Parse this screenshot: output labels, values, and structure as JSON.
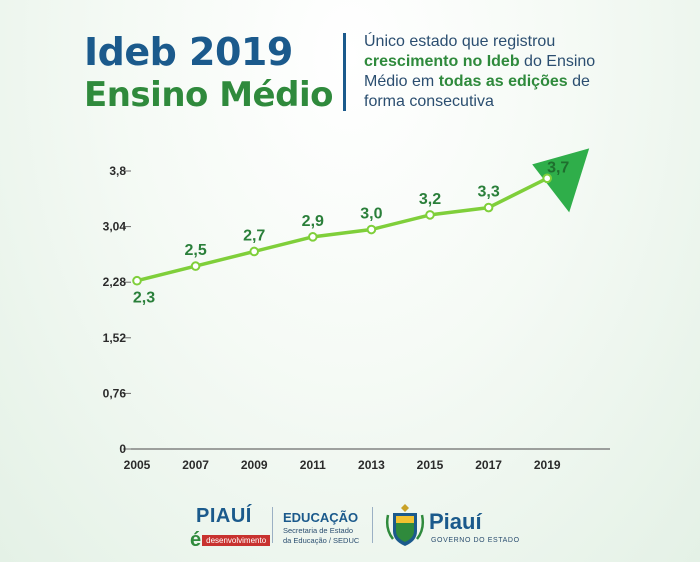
{
  "header": {
    "title_line1": "Ideb 2019",
    "title_line2": "Ensino Médio",
    "desc_part1": "Único estado que registrou ",
    "desc_bold1": "crescimento no Ideb",
    "desc_part2": " do Ensino Médio em ",
    "desc_bold2": "todas as edições",
    "desc_part3": " de forma consecutiva"
  },
  "colors": {
    "title_blue": "#1b5a8c",
    "title_green": "#2f8a3c",
    "line_green": "#7fcf3a",
    "arrow_green": "#2fae4a",
    "label_green": "#2a7f3a"
  },
  "chart_data": {
    "type": "line",
    "x": [
      "2005",
      "2007",
      "2009",
      "2011",
      "2013",
      "2015",
      "2017",
      "2019"
    ],
    "values": [
      2.3,
      2.5,
      2.7,
      2.9,
      3.0,
      3.2,
      3.3,
      3.7
    ],
    "value_labels": [
      "2,3",
      "2,5",
      "2,7",
      "2,9",
      "3,0",
      "3,2",
      "3,3",
      "3,7"
    ],
    "y_ticks": [
      0,
      0.76,
      1.52,
      2.28,
      3.04,
      3.8
    ],
    "y_tick_labels": [
      "0",
      "0,76",
      "1,52",
      "2,28",
      "3,04",
      "3,8"
    ],
    "ylim": [
      0,
      3.8
    ],
    "grid": false,
    "arrow_at_end": true,
    "title": "",
    "xlabel": "",
    "ylabel": ""
  },
  "footer": {
    "piaui_dev_line1": "PIAUÍ",
    "piaui_dev_e": "é",
    "piaui_dev_bar": "desenvolvimento",
    "edu_title": "EDUCAÇÃO",
    "edu_sub1": "Secretaria de Estado",
    "edu_sub2": "da Educação / SEDUC",
    "gov_name": "Piauí",
    "gov_sub": "GOVERNO DO ESTADO"
  }
}
